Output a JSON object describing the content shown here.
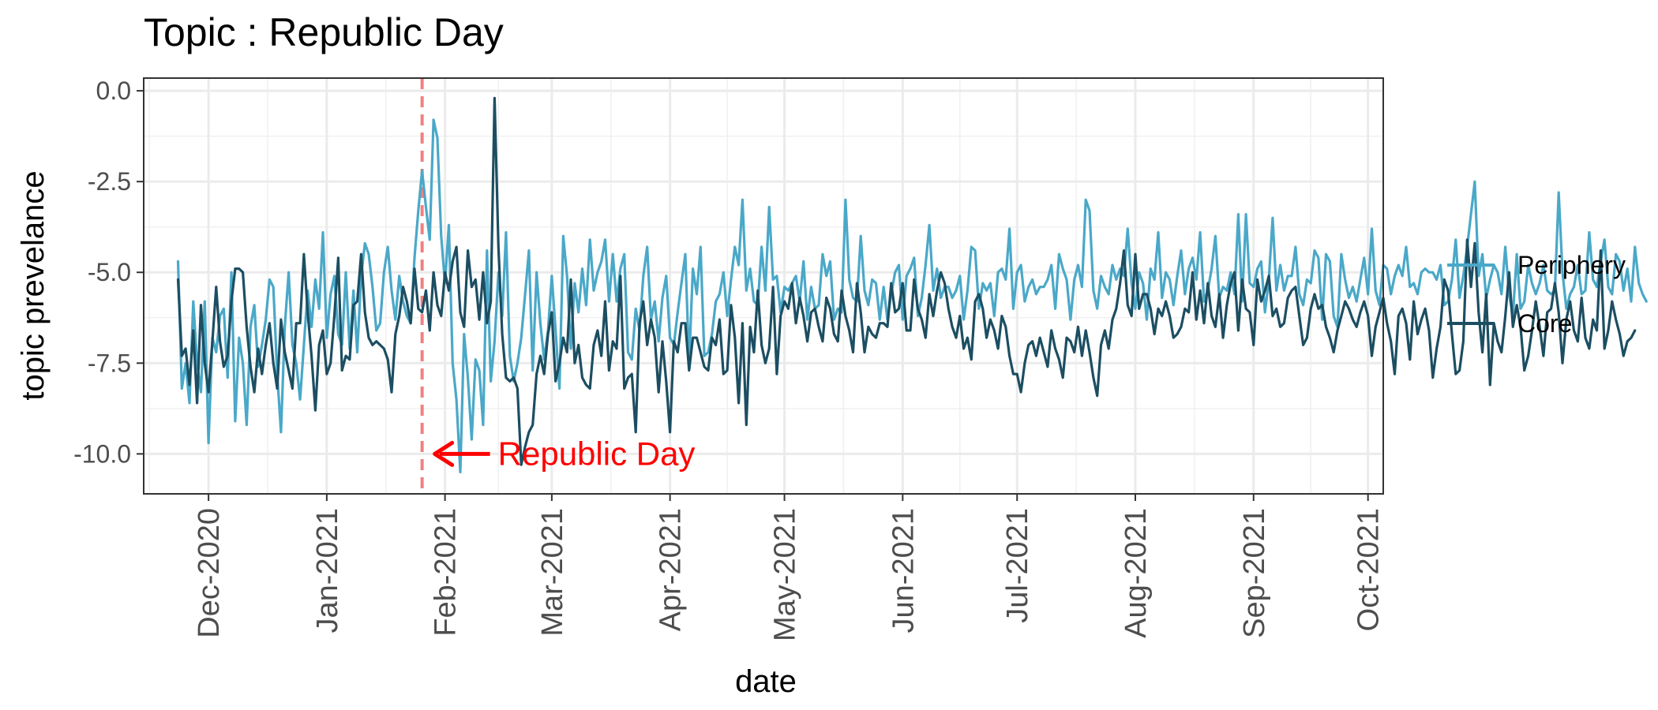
{
  "chart_data": {
    "type": "line",
    "title": "Topic : Republic Day",
    "xlabel": "date",
    "ylabel": "topic prevelance",
    "x_domain": [
      "2020-11-14",
      "2021-10-05"
    ],
    "ylim": [
      -11.1,
      0.35
    ],
    "y_ticks": [
      0.0,
      -2.5,
      -5.0,
      -7.5,
      -10.0
    ],
    "y_tick_labels": [
      "0.0",
      "-2.5",
      "-5.0",
      "-7.5",
      "-10.0"
    ],
    "x_ticks": [
      "2020-12-01",
      "2021-01-01",
      "2021-02-01",
      "2021-03-01",
      "2021-04-01",
      "2021-05-01",
      "2021-06-01",
      "2021-07-01",
      "2021-08-01",
      "2021-09-01",
      "2021-10-01"
    ],
    "x_tick_labels": [
      "Dec-2020",
      "Jan-2021",
      "Feb-2021",
      "Mar-2021",
      "Apr-2021",
      "May-2021",
      "Jun-2021",
      "Jul-2021",
      "Aug-2021",
      "Sep-2021",
      "Oct-2021"
    ],
    "grid": true,
    "legend_position": "right",
    "colors": {
      "periphery": "#4aa8c8",
      "core": "#1c4e62",
      "event": "#f08080",
      "annotation": "#ff0000"
    },
    "reference_line": {
      "date": "2021-01-26"
    },
    "annotation": {
      "text": "Republic Day",
      "date": "2021-01-26",
      "y": -10.0
    },
    "series": [
      {
        "name": "Periphery",
        "start_date": "2020-11-23",
        "values": [
          -4.7,
          -8.2,
          -7.5,
          -8.6,
          -5.8,
          -7.5,
          -8.3,
          -5.8,
          -9.7,
          -6.8,
          -7.2,
          -6.2,
          -6.0,
          -7.9,
          -5.0,
          -9.1,
          -6.8,
          -7.5,
          -9.2,
          -6.5,
          -5.9,
          -7.6,
          -7.0,
          -6.3,
          -5.2,
          -5.4,
          -7.8,
          -9.4,
          -6.5,
          -5.0,
          -7.0,
          -7.5,
          -8.5,
          -7.0,
          -5.5,
          -6.5,
          -5.2,
          -6.0,
          -3.9,
          -6.8,
          -5.6,
          -5.1,
          -6.7,
          -7.0,
          -5.0,
          -7.1,
          -5.5,
          -7.2,
          -5.1,
          -4.2,
          -4.5,
          -5.4,
          -6.6,
          -6.4,
          -5.0,
          -4.3,
          -5.5,
          -6.3,
          -5.1,
          -5.8,
          -6.2,
          -6.4,
          -4.6,
          -3.3,
          -2.2,
          -3.2,
          -4.1,
          -0.8,
          -1.3,
          -4.0,
          -5.3,
          -3.7,
          -7.5,
          -8.5,
          -10.5,
          -6.7,
          -7.9,
          -9.6,
          -7.4,
          -7.7,
          -9.2,
          -4.4,
          -8.0,
          -6.9,
          -5.0,
          -6.2,
          -3.9,
          -7.3,
          -8.0,
          -7.5,
          -6.8,
          -5.6,
          -4.4,
          -7.7,
          -5.0,
          -6.4,
          -7.4,
          -6.6,
          -5.1,
          -6.6,
          -8.2,
          -4.0,
          -5.1,
          -7.1,
          -5.3,
          -6.1,
          -4.9,
          -5.9,
          -4.1,
          -5.5,
          -5.0,
          -4.7,
          -4.1,
          -5.8,
          -4.5,
          -5.8,
          -4.9,
          -4.5,
          -7.2,
          -7.4,
          -6.0,
          -6.6,
          -5.1,
          -4.3,
          -6.3,
          -5.8,
          -6.9,
          -5.7,
          -5.1,
          -6.8,
          -7.0,
          -6.1,
          -5.3,
          -4.5,
          -7.5,
          -4.9,
          -5.6,
          -4.3,
          -7.3,
          -7.2,
          -6.7,
          -5.8,
          -5.6,
          -5.0,
          -6.2,
          -5.2,
          -4.3,
          -4.8,
          -3.0,
          -5.5,
          -4.9,
          -5.8,
          -5.9,
          -4.3,
          -5.5,
          -3.2,
          -5.2,
          -5.1,
          -6.1,
          -5.4,
          -5.5,
          -5.3,
          -5.1,
          -5.8,
          -4.7,
          -6.3,
          -5.4,
          -6.0,
          -5.9,
          -4.5,
          -5.1,
          -4.7,
          -6.3,
          -6.0,
          -6.1,
          -3.0,
          -5.2,
          -5.7,
          -5.8,
          -4.0,
          -5.5,
          -5.9,
          -5.2,
          -5.3,
          -6.3,
          -5.4,
          -6.3,
          -5.6,
          -5.0,
          -4.8,
          -6.3,
          -5.1,
          -4.9,
          -4.6,
          -6.2,
          -5.7,
          -4.8,
          -3.7,
          -5.5,
          -4.9,
          -5.7,
          -5.4,
          -5.4,
          -5.7,
          -5.5,
          -5.1,
          -6.3,
          -5.5,
          -4.3,
          -4.4,
          -6.0,
          -5.3,
          -5.5,
          -5.3,
          -6.2,
          -5.0,
          -4.9,
          -5.2,
          -3.8,
          -6.0,
          -5.0,
          -4.8,
          -5.8,
          -5.4,
          -5.2,
          -5.6,
          -5.4,
          -5.4,
          -5.2,
          -4.8,
          -6.0,
          -4.5,
          -4.9,
          -5.2,
          -6.3,
          -5.2,
          -4.8,
          -5.4,
          -3.0,
          -3.3,
          -5.5,
          -6.0,
          -5.1,
          -5.4,
          -5.6,
          -4.8,
          -5.2,
          -4.9,
          -5.1,
          -3.8,
          -5.3,
          -6.0,
          -5.0,
          -5.3,
          -6.3,
          -4.9,
          -5.2,
          -3.9,
          -5.7,
          -5.0,
          -5.2,
          -5.9,
          -5.1,
          -4.4,
          -5.6,
          -4.9,
          -4.6,
          -5.2,
          -3.9,
          -5.8,
          -5.5,
          -4.9,
          -4.0,
          -5.7,
          -5.4,
          -5.5,
          -5.0,
          -5.6,
          -3.4,
          -5.8,
          -3.4,
          -5.3,
          -5.4,
          -4.9,
          -4.7,
          -6.1,
          -5.2,
          -3.5,
          -5.5,
          -4.8,
          -5.5,
          -5.1,
          -5.1,
          -4.3,
          -5.6,
          -5.9,
          -5.2,
          -5.3,
          -4.4,
          -4.6,
          -6.3,
          -4.5,
          -4.7,
          -6.2,
          -6.5,
          -4.5,
          -5.2,
          -5.7,
          -5.4,
          -5.8,
          -5.2,
          -4.6,
          -5.6,
          -3.8,
          -5.5,
          -5.9,
          -4.8,
          -4.9,
          -5.6,
          -5.1,
          -4.8,
          -5.1,
          -4.3,
          -5.4,
          -5.3,
          -5.6,
          -5.0,
          -4.9,
          -5.0,
          -5.0,
          -5.2,
          -4.8,
          -5.9,
          -5.8,
          -5.2,
          -4.1,
          -5.7,
          -5.1,
          -4.3,
          -3.4,
          -2.5,
          -5.1,
          -4.5,
          -5.7,
          -5.2,
          -4.8,
          -5.0,
          -5.6,
          -4.3,
          -5.6,
          -6.2,
          -4.5,
          -6.0,
          -5.8,
          -4.8,
          -5.3,
          -5.6,
          -5.3,
          -4.8,
          -5.5,
          -5.6,
          -5.5,
          -2.8,
          -5.0,
          -6.0,
          -5.6,
          -5.4,
          -4.8,
          -5.6,
          -5.5,
          -3.9,
          -5.2,
          -5.4,
          -4.7,
          -4.1,
          -5.4,
          -5.6,
          -4.5,
          -4.7,
          -5.5,
          -4.9,
          -5.8,
          -4.3,
          -5.3,
          -5.6,
          -5.8
        ]
      },
      {
        "name": "Core",
        "start_date": "2020-11-23",
        "values": [
          -5.2,
          -7.3,
          -7.1,
          -8.1,
          -6.6,
          -8.6,
          -5.9,
          -7.5,
          -8.3,
          -6.9,
          -5.4,
          -6.9,
          -7.6,
          -7.3,
          -5.8,
          -4.9,
          -4.9,
          -5.0,
          -6.5,
          -7.6,
          -8.3,
          -7.1,
          -7.8,
          -7.0,
          -6.4,
          -7.5,
          -8.2,
          -6.3,
          -7.2,
          -7.7,
          -8.2,
          -6.4,
          -6.4,
          -4.5,
          -6.1,
          -7.3,
          -8.8,
          -7.0,
          -6.6,
          -7.8,
          -7.5,
          -6.2,
          -4.6,
          -7.7,
          -7.3,
          -7.4,
          -5.9,
          -5.8,
          -4.5,
          -6.1,
          -6.8,
          -7.0,
          -6.9,
          -7.0,
          -7.1,
          -7.4,
          -8.3,
          -6.7,
          -6.2,
          -5.4,
          -5.8,
          -6.4,
          -4.9,
          -6.0,
          -6.1,
          -5.5,
          -6.6,
          -5.0,
          -5.9,
          -6.2,
          -5.0,
          -5.5,
          -4.7,
          -4.3,
          -6.1,
          -6.5,
          -4.4,
          -5.4,
          -5.2,
          -6.3,
          -5.0,
          -6.4,
          -5.8,
          -0.2,
          -4.3,
          -6.7,
          -7.9,
          -8.0,
          -7.9,
          -8.2,
          -10.3,
          -9.8,
          -9.4,
          -9.2,
          -7.8,
          -7.3,
          -7.8,
          -6.7,
          -6.1,
          -8.0,
          -7.5,
          -6.8,
          -7.2,
          -5.2,
          -7.5,
          -7.0,
          -7.9,
          -8.1,
          -8.2,
          -7.0,
          -6.6,
          -7.3,
          -5.8,
          -7.7,
          -6.9,
          -7.1,
          -5.1,
          -8.2,
          -7.9,
          -7.8,
          -9.4,
          -6.4,
          -5.8,
          -7.0,
          -6.3,
          -6.8,
          -8.3,
          -6.9,
          -8.0,
          -9.4,
          -6.9,
          -7.2,
          -6.4,
          -6.4,
          -7.7,
          -6.8,
          -6.8,
          -7.2,
          -7.6,
          -7.7,
          -6.8,
          -7.0,
          -6.3,
          -7.8,
          -7.7,
          -5.9,
          -6.8,
          -8.6,
          -6.4,
          -9.2,
          -6.5,
          -7.2,
          -5.5,
          -7.0,
          -7.5,
          -7.1,
          -5.4,
          -7.8,
          -6.2,
          -5.8,
          -6.0,
          -5.3,
          -6.4,
          -5.7,
          -6.2,
          -6.9,
          -6.1,
          -6.0,
          -6.5,
          -6.9,
          -5.7,
          -6.0,
          -6.7,
          -6.9,
          -5.5,
          -6.2,
          -6.6,
          -7.2,
          -5.3,
          -6.1,
          -7.2,
          -6.5,
          -6.7,
          -6.8,
          -6.4,
          -6.4,
          -6.5,
          -5.3,
          -6.1,
          -6.0,
          -5.3,
          -6.6,
          -6.6,
          -5.2,
          -6.0,
          -6.3,
          -6.8,
          -5.6,
          -6.2,
          -5.5,
          -5.0,
          -5.3,
          -6.0,
          -6.5,
          -6.8,
          -6.2,
          -7.1,
          -6.8,
          -7.4,
          -5.8,
          -5.6,
          -6.0,
          -6.8,
          -6.3,
          -6.6,
          -7.1,
          -6.2,
          -6.5,
          -7.3,
          -7.8,
          -7.8,
          -8.3,
          -7.5,
          -7.0,
          -6.9,
          -7.3,
          -6.8,
          -7.2,
          -7.6,
          -6.6,
          -7.1,
          -7.4,
          -7.9,
          -6.8,
          -6.9,
          -7.2,
          -6.5,
          -7.3,
          -6.6,
          -7.2,
          -7.9,
          -8.4,
          -7.0,
          -6.6,
          -7.1,
          -6.3,
          -6.0,
          -5.3,
          -4.4,
          -5.9,
          -6.2,
          -4.5,
          -6.0,
          -5.6,
          -5.6,
          -6.0,
          -6.7,
          -6.0,
          -6.2,
          -5.8,
          -6.2,
          -6.8,
          -6.7,
          -6.5,
          -6.0,
          -6.1,
          -5.0,
          -6.3,
          -5.5,
          -6.4,
          -5.3,
          -6.2,
          -6.5,
          -5.6,
          -6.8,
          -5.9,
          -5.3,
          -5.0,
          -6.6,
          -5.2,
          -6.0,
          -6.1,
          -7.0,
          -5.2,
          -5.8,
          -5.5,
          -5.1,
          -6.2,
          -6.0,
          -6.5,
          -6.4,
          -5.7,
          -5.5,
          -5.4,
          -6.2,
          -7.0,
          -6.8,
          -6.0,
          -5.6,
          -6.0,
          -5.9,
          -6.5,
          -6.8,
          -7.2,
          -6.6,
          -6.2,
          -5.8,
          -6.0,
          -6.3,
          -6.5,
          -6.1,
          -5.8,
          -6.2,
          -7.3,
          -6.5,
          -6.1,
          -5.7,
          -6.4,
          -6.9,
          -7.8,
          -6.2,
          -6.0,
          -6.4,
          -7.4,
          -5.8,
          -6.7,
          -6.3,
          -6.0,
          -6.6,
          -7.9,
          -7.1,
          -6.5,
          -5.2,
          -5.5,
          -6.7,
          -7.8,
          -7.7,
          -6.9,
          -4.1,
          -5.4,
          -4.2,
          -6.1,
          -7.2,
          -5.6,
          -8.1,
          -6.4,
          -6.9,
          -7.2,
          -6.2,
          -5.0,
          -6.5,
          -5.9,
          -6.5,
          -7.7,
          -7.3,
          -6.6,
          -5.8,
          -6.5,
          -7.3,
          -6.1,
          -6.0,
          -5.3,
          -6.1,
          -7.5,
          -6.3,
          -5.8,
          -6.6,
          -6.9,
          -5.7,
          -6.8,
          -7.1,
          -6.3,
          -6.6,
          -4.4,
          -7.1,
          -6.6,
          -5.8,
          -6.3,
          -6.7,
          -7.3,
          -6.9,
          -6.8,
          -6.6
        ]
      }
    ]
  }
}
